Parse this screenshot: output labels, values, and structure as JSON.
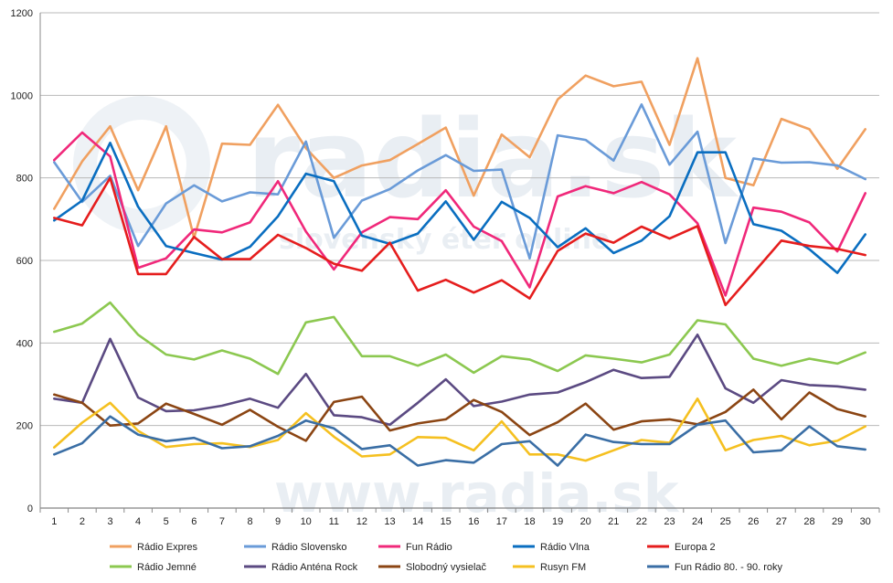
{
  "chart_data": {
    "type": "line",
    "title": "",
    "xlabel": "",
    "ylabel": "",
    "x": [
      1,
      2,
      3,
      4,
      5,
      6,
      7,
      8,
      9,
      10,
      11,
      12,
      13,
      14,
      15,
      16,
      17,
      18,
      19,
      20,
      21,
      22,
      23,
      24,
      25,
      26,
      27,
      28,
      29,
      30
    ],
    "ylim": [
      0,
      1200
    ],
    "yticks": [
      0,
      200,
      400,
      600,
      800,
      1000,
      1200
    ],
    "grid": "horizontal",
    "legend_position": "bottom",
    "series": [
      {
        "name": "Rádio Expres",
        "color": "#f0a060",
        "values": [
          725,
          840,
          925,
          770,
          925,
          655,
          883,
          880,
          977,
          872,
          800,
          830,
          843,
          882,
          922,
          757,
          905,
          850,
          990,
          1048,
          1022,
          1033,
          880,
          1090,
          800,
          782,
          943,
          918,
          822,
          918
        ]
      },
      {
        "name": "Rádio Slovensko",
        "color": "#6a9bd8",
        "values": [
          838,
          742,
          805,
          635,
          738,
          782,
          743,
          765,
          760,
          888,
          655,
          745,
          773,
          818,
          855,
          817,
          820,
          605,
          903,
          892,
          842,
          978,
          832,
          912,
          642,
          847,
          837,
          838,
          830,
          797
        ]
      },
      {
        "name": "Fun Rádio",
        "color": "#f0287a",
        "values": [
          843,
          910,
          852,
          582,
          605,
          675,
          668,
          692,
          792,
          670,
          578,
          668,
          705,
          700,
          770,
          682,
          647,
          535,
          755,
          780,
          763,
          790,
          760,
          690,
          515,
          728,
          718,
          692,
          622,
          763
        ]
      },
      {
        "name": "Rádio Vlna",
        "color": "#0a6ec0",
        "values": [
          697,
          745,
          885,
          730,
          635,
          618,
          602,
          633,
          707,
          810,
          792,
          660,
          640,
          665,
          743,
          650,
          742,
          703,
          632,
          678,
          618,
          648,
          707,
          862,
          862,
          688,
          672,
          627,
          570,
          663
        ]
      },
      {
        "name": "Europa 2",
        "color": "#e51d1d",
        "values": [
          703,
          685,
          800,
          567,
          567,
          657,
          603,
          603,
          662,
          630,
          592,
          575,
          643,
          527,
          553,
          522,
          552,
          508,
          623,
          665,
          643,
          682,
          653,
          683,
          492,
          570,
          648,
          635,
          628,
          613
        ]
      },
      {
        "name": "Rádio Jemné",
        "color": "#8cc850",
        "values": [
          427,
          447,
          498,
          420,
          372,
          360,
          382,
          362,
          325,
          450,
          463,
          368,
          368,
          345,
          372,
          328,
          368,
          360,
          332,
          370,
          362,
          353,
          372,
          455,
          445,
          362,
          345,
          362,
          350,
          377
        ]
      },
      {
        "name": "Rádio Anténa Rock",
        "color": "#5b4a82",
        "values": [
          265,
          255,
          410,
          268,
          235,
          237,
          248,
          265,
          243,
          325,
          225,
          220,
          202,
          255,
          312,
          247,
          258,
          275,
          280,
          305,
          335,
          315,
          318,
          420,
          290,
          255,
          310,
          298,
          295,
          287
        ]
      },
      {
        "name": "Slobodný vysielač",
        "color": "#8b4513",
        "values": [
          275,
          255,
          200,
          205,
          253,
          228,
          202,
          238,
          197,
          163,
          257,
          270,
          188,
          205,
          215,
          262,
          233,
          177,
          208,
          253,
          190,
          210,
          215,
          203,
          233,
          287,
          215,
          280,
          240,
          222
        ]
      },
      {
        "name": "Rusyn FM",
        "color": "#f5c020",
        "values": [
          147,
          207,
          255,
          187,
          148,
          155,
          157,
          148,
          165,
          230,
          173,
          125,
          130,
          172,
          170,
          140,
          210,
          130,
          130,
          115,
          140,
          165,
          158,
          265,
          140,
          165,
          175,
          152,
          163,
          198
        ]
      },
      {
        "name": "Fun Rádio 80. - 90. roky",
        "color": "#3a6ea5",
        "values": [
          130,
          157,
          222,
          178,
          162,
          170,
          145,
          150,
          175,
          212,
          193,
          143,
          152,
          103,
          116,
          110,
          155,
          162,
          103,
          178,
          160,
          155,
          155,
          202,
          212,
          135,
          140,
          198,
          150,
          142
        ]
      }
    ]
  },
  "watermark": {
    "logo": "radia.sk",
    "tagline": "slovenský éter online",
    "url": "www.radia.sk"
  }
}
